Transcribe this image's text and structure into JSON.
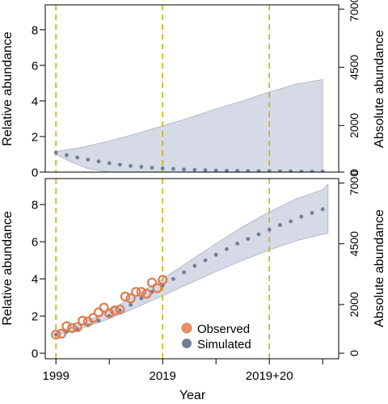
{
  "chart_data": [
    {
      "type": "scatter",
      "panel": "top",
      "xlabel": "",
      "ylabel": "Relative abundance",
      "ylabel_right": "Absolute abundance",
      "ylim": [
        0,
        9.4
      ],
      "right_ticks": [
        {
          "value": 0,
          "label": "0"
        },
        {
          "value": 2000,
          "label": "2000"
        },
        {
          "value": 4500,
          "label": "4500"
        },
        {
          "value": 7000,
          "label": "7000"
        }
      ],
      "right_per_relative": 764,
      "yticks": [
        0,
        2,
        4,
        6,
        8
      ],
      "vlines": [
        1999,
        2019,
        2039
      ],
      "band_upper": [
        [
          1999,
          1.15
        ],
        [
          2004,
          1.4
        ],
        [
          2009,
          1.75
        ],
        [
          2014,
          2.15
        ],
        [
          2019,
          2.6
        ],
        [
          2024,
          3.05
        ],
        [
          2029,
          3.55
        ],
        [
          2034,
          4.0
        ],
        [
          2039,
          4.5
        ],
        [
          2044,
          4.95
        ],
        [
          2049,
          5.2
        ]
      ],
      "band_lower": [
        [
          1999,
          1.0
        ],
        [
          2002,
          0.55
        ],
        [
          2005,
          0.2
        ],
        [
          2009,
          0.0
        ],
        [
          2049,
          0.0
        ]
      ],
      "simulated": [
        [
          1999,
          1.1
        ],
        [
          2001,
          0.95
        ],
        [
          2003,
          0.82
        ],
        [
          2005,
          0.7
        ],
        [
          2007,
          0.6
        ],
        [
          2009,
          0.5
        ],
        [
          2011,
          0.42
        ],
        [
          2013,
          0.35
        ],
        [
          2015,
          0.3
        ],
        [
          2017,
          0.25
        ],
        [
          2019,
          0.21
        ],
        [
          2021,
          0.18
        ],
        [
          2023,
          0.15
        ],
        [
          2025,
          0.13
        ],
        [
          2027,
          0.11
        ],
        [
          2029,
          0.09
        ],
        [
          2031,
          0.08
        ],
        [
          2033,
          0.07
        ],
        [
          2035,
          0.06
        ],
        [
          2037,
          0.05
        ],
        [
          2039,
          0.05
        ],
        [
          2041,
          0.04
        ],
        [
          2043,
          0.04
        ],
        [
          2045,
          0.03
        ],
        [
          2047,
          0.03
        ],
        [
          2049,
          0.03
        ]
      ]
    },
    {
      "type": "scatter",
      "panel": "bottom",
      "xlabel": "Year",
      "ylabel": "Relative abundance",
      "ylabel_right": "Absolute abundance",
      "ylim": [
        -0.3,
        9.4
      ],
      "right_ticks": [
        {
          "value": 0,
          "label": "0"
        },
        {
          "value": 2000,
          "label": "2000"
        },
        {
          "value": 4500,
          "label": "4500"
        },
        {
          "value": 7000,
          "label": "7000"
        }
      ],
      "right_per_relative": 764,
      "yticks": [
        0,
        2,
        4,
        6,
        8
      ],
      "xticks": [
        {
          "value": 1999,
          "label": "1999"
        },
        {
          "value": 2009,
          "label": ""
        },
        {
          "value": 2019,
          "label": "2019"
        },
        {
          "value": 2029,
          "label": ""
        },
        {
          "value": 2039,
          "label": "2019+20"
        },
        {
          "value": 2049,
          "label": ""
        }
      ],
      "vlines": [
        1999,
        2019,
        2039
      ],
      "observed": [
        [
          1999,
          1.0
        ],
        [
          2000,
          1.05
        ],
        [
          2001,
          1.45
        ],
        [
          2002,
          1.35
        ],
        [
          2003,
          1.4
        ],
        [
          2004,
          1.75
        ],
        [
          2005,
          1.7
        ],
        [
          2006,
          1.9
        ],
        [
          2007,
          2.2
        ],
        [
          2008,
          2.45
        ],
        [
          2009,
          2.15
        ],
        [
          2010,
          2.3
        ],
        [
          2011,
          2.35
        ],
        [
          2012,
          3.05
        ],
        [
          2013,
          2.95
        ],
        [
          2014,
          3.3
        ],
        [
          2015,
          3.3
        ],
        [
          2016,
          3.2
        ],
        [
          2017,
          3.8
        ],
        [
          2018,
          3.5
        ],
        [
          2019,
          3.95
        ]
      ],
      "simulated": [
        [
          1999,
          1.0
        ],
        [
          2001,
          1.15
        ],
        [
          2003,
          1.3
        ],
        [
          2005,
          1.5
        ],
        [
          2007,
          1.75
        ],
        [
          2009,
          2.0
        ],
        [
          2011,
          2.3
        ],
        [
          2013,
          2.6
        ],
        [
          2015,
          2.95
        ],
        [
          2017,
          3.3
        ],
        [
          2019,
          3.65
        ],
        [
          2021,
          4.0
        ],
        [
          2023,
          4.35
        ],
        [
          2025,
          4.7
        ],
        [
          2027,
          5.0
        ],
        [
          2029,
          5.3
        ],
        [
          2031,
          5.6
        ],
        [
          2033,
          5.9
        ],
        [
          2035,
          6.15
        ],
        [
          2037,
          6.4
        ],
        [
          2039,
          6.65
        ],
        [
          2041,
          6.9
        ],
        [
          2043,
          7.1
        ],
        [
          2045,
          7.35
        ],
        [
          2047,
          7.55
        ],
        [
          2049,
          7.75
        ]
      ],
      "band_upper": [
        [
          1999,
          1.05
        ],
        [
          2004,
          1.6
        ],
        [
          2009,
          2.3
        ],
        [
          2014,
          3.1
        ],
        [
          2019,
          4.0
        ],
        [
          2024,
          4.95
        ],
        [
          2029,
          5.9
        ],
        [
          2034,
          6.8
        ],
        [
          2039,
          7.6
        ],
        [
          2044,
          8.3
        ],
        [
          2049,
          8.8
        ],
        [
          2050,
          9.1
        ]
      ],
      "band_lower": [
        [
          1999,
          0.95
        ],
        [
          2004,
          1.35
        ],
        [
          2009,
          1.85
        ],
        [
          2014,
          2.45
        ],
        [
          2019,
          3.1
        ],
        [
          2024,
          3.75
        ],
        [
          2029,
          4.4
        ],
        [
          2034,
          5.0
        ],
        [
          2039,
          5.55
        ],
        [
          2044,
          6.05
        ],
        [
          2049,
          6.4
        ],
        [
          2050,
          6.45
        ]
      ],
      "legend": {
        "position": "bottom-center",
        "entries": [
          {
            "label": "Observed",
            "color": "#e07b4f"
          },
          {
            "label": "Simulated",
            "color": "#6f7f96"
          }
        ]
      }
    }
  ],
  "colors": {
    "band": "#d6dae6",
    "band_edge": "#a9b0c4",
    "simulated": "#6f7f96",
    "observed_fill": "#e8906a",
    "observed_stroke": "#e07b4f",
    "vline": "#c9b400"
  }
}
